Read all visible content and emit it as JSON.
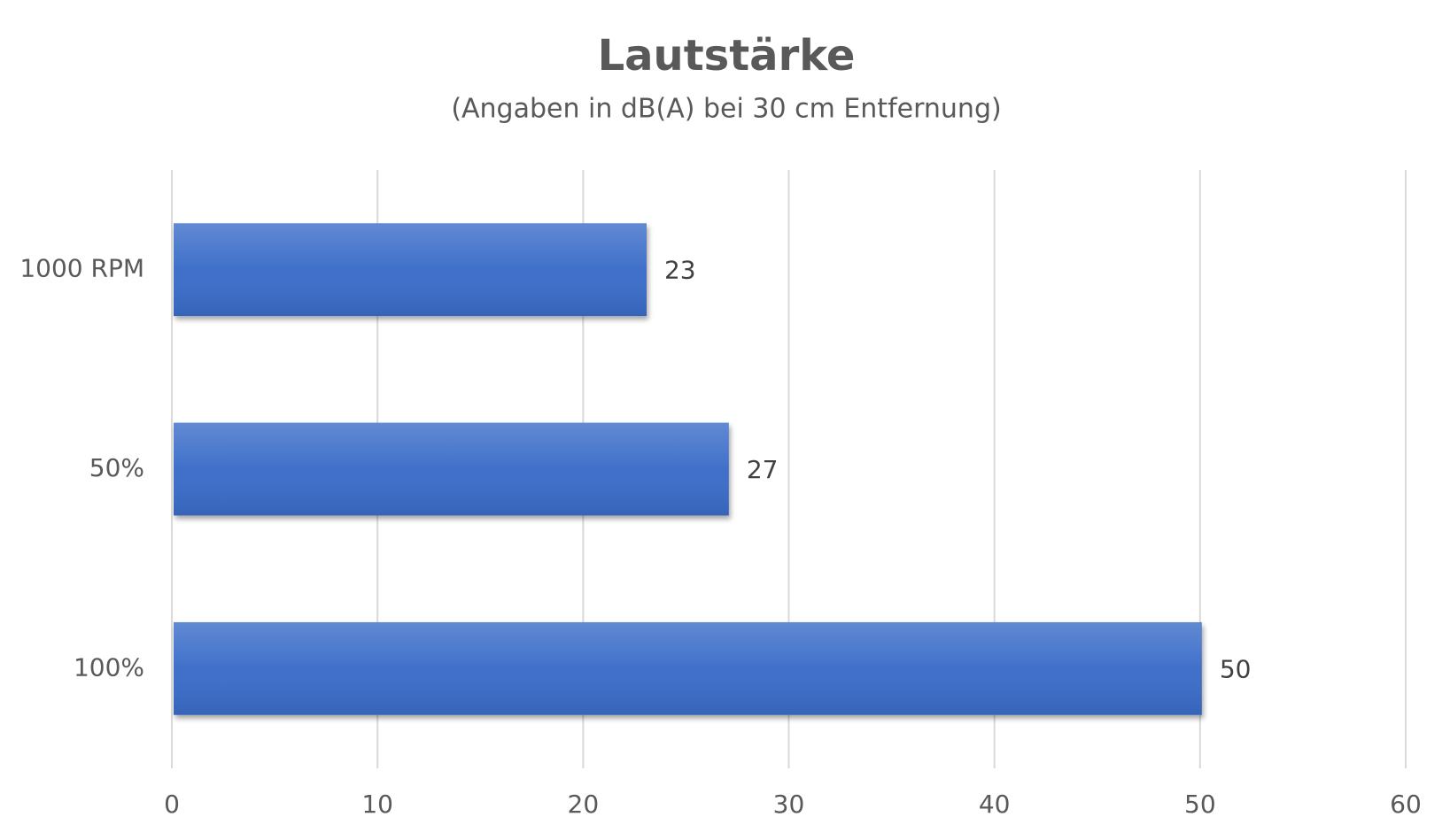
{
  "chart_data": {
    "type": "bar",
    "orientation": "horizontal",
    "title": "Lautstärke",
    "subtitle": "(Angaben in dB(A) bei 30 cm Entfernung)",
    "categories": [
      "1000 RPM",
      "50%",
      "100%"
    ],
    "values": [
      23,
      27,
      50
    ],
    "color": "#3a6cc8",
    "xlim": [
      0,
      60
    ],
    "xticks": [
      0,
      10,
      20,
      30,
      40,
      50,
      60
    ],
    "grid": true
  }
}
